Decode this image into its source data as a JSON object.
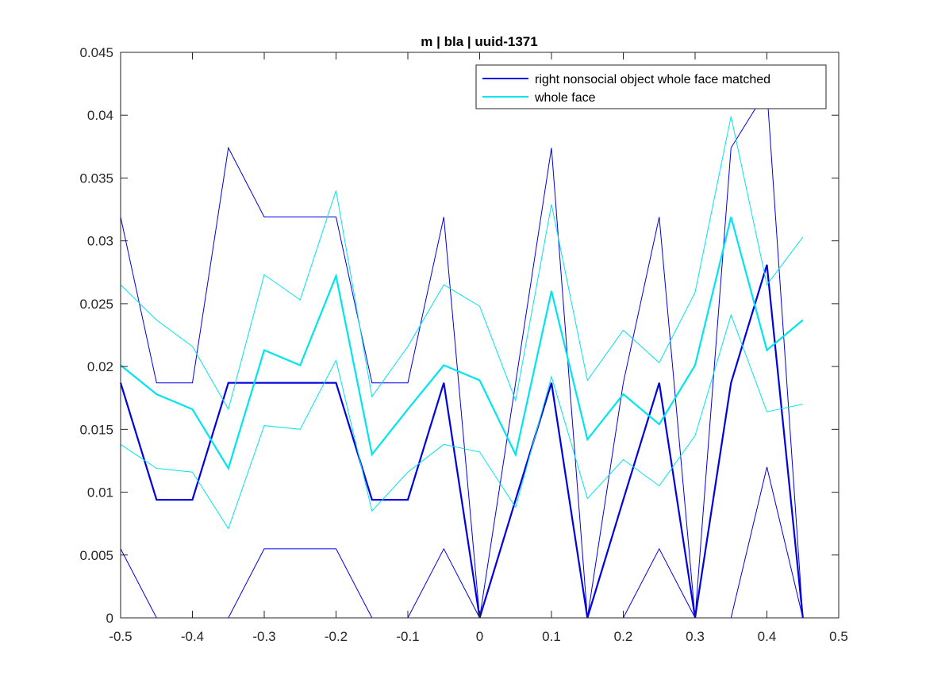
{
  "chart_data": {
    "type": "line",
    "title": "m | bla | uuid-1371",
    "xlabel": "",
    "ylabel": "",
    "xlim": [
      -0.5,
      0.5
    ],
    "ylim": [
      0,
      0.045
    ],
    "x": [
      -0.5,
      -0.45,
      -0.4,
      -0.35,
      -0.3,
      -0.25,
      -0.2,
      -0.15,
      -0.1,
      -0.05,
      0,
      0.05,
      0.1,
      0.15,
      0.2,
      0.25,
      0.3,
      0.35,
      0.4,
      0.45
    ],
    "x_ticks": [
      "-0.5",
      "-0.4",
      "-0.3",
      "-0.2",
      "-0.1",
      "0",
      "0.1",
      "0.2",
      "0.3",
      "0.4",
      "0.5"
    ],
    "x_tick_values": [
      -0.5,
      -0.4,
      -0.3,
      -0.2,
      -0.1,
      0,
      0.1,
      0.2,
      0.3,
      0.4,
      0.5
    ],
    "y_ticks": [
      "0",
      "0.005",
      "0.01",
      "0.015",
      "0.02",
      "0.025",
      "0.03",
      "0.035",
      "0.04",
      "0.045"
    ],
    "y_tick_values": [
      0,
      0.005,
      0.01,
      0.015,
      0.02,
      0.025,
      0.03,
      0.035,
      0.04,
      0.045
    ],
    "grid": false,
    "legend_position": "top-right",
    "series": [
      {
        "name": "right nonsocial object whole face matched",
        "color": "#0000e0",
        "mean": [
          0.0187,
          0.0094,
          0.0094,
          0.0187,
          0.0187,
          0.0187,
          0.0187,
          0.0094,
          0.0094,
          0.0187,
          0,
          0.0094,
          0.0187,
          0,
          0.0094,
          0.0187,
          0,
          0.0187,
          0.0281,
          0
        ],
        "upper": [
          0.0319,
          0.0187,
          0.0187,
          0.0374,
          0.0319,
          0.0319,
          0.0319,
          0.0187,
          0.0187,
          0.0319,
          0,
          0.0187,
          0.0374,
          0,
          0.0187,
          0.0319,
          0,
          0.0374,
          0.042,
          0
        ],
        "lower": [
          0.0055,
          0,
          0,
          0,
          0.0055,
          0.0055,
          0.0055,
          0,
          0,
          0.0055,
          0,
          0,
          0,
          0,
          0,
          0.0055,
          0,
          0,
          0.012,
          0
        ]
      },
      {
        "name": "whole face",
        "color": "#00e5ee",
        "mean": [
          0.0201,
          0.0178,
          0.0166,
          0.0119,
          0.0213,
          0.0201,
          0.0272,
          0.013,
          0.0166,
          0.0201,
          0.0189,
          0.013,
          0.026,
          0.0142,
          0.0178,
          0.0154,
          0.0201,
          0.0319,
          0.0213,
          0.0237
        ],
        "upper": [
          0.0265,
          0.0237,
          0.0216,
          0.0166,
          0.0273,
          0.0253,
          0.034,
          0.0176,
          0.0216,
          0.0265,
          0.0248,
          0.0173,
          0.0329,
          0.0189,
          0.0229,
          0.0203,
          0.0259,
          0.0399,
          0.0265,
          0.0303
        ],
        "lower": [
          0.0138,
          0.0119,
          0.0116,
          0.0071,
          0.0153,
          0.015,
          0.0205,
          0.0085,
          0.0116,
          0.0138,
          0.0132,
          0.0088,
          0.0192,
          0.0095,
          0.0126,
          0.0105,
          0.0145,
          0.0241,
          0.0164,
          0.017
        ]
      }
    ]
  }
}
